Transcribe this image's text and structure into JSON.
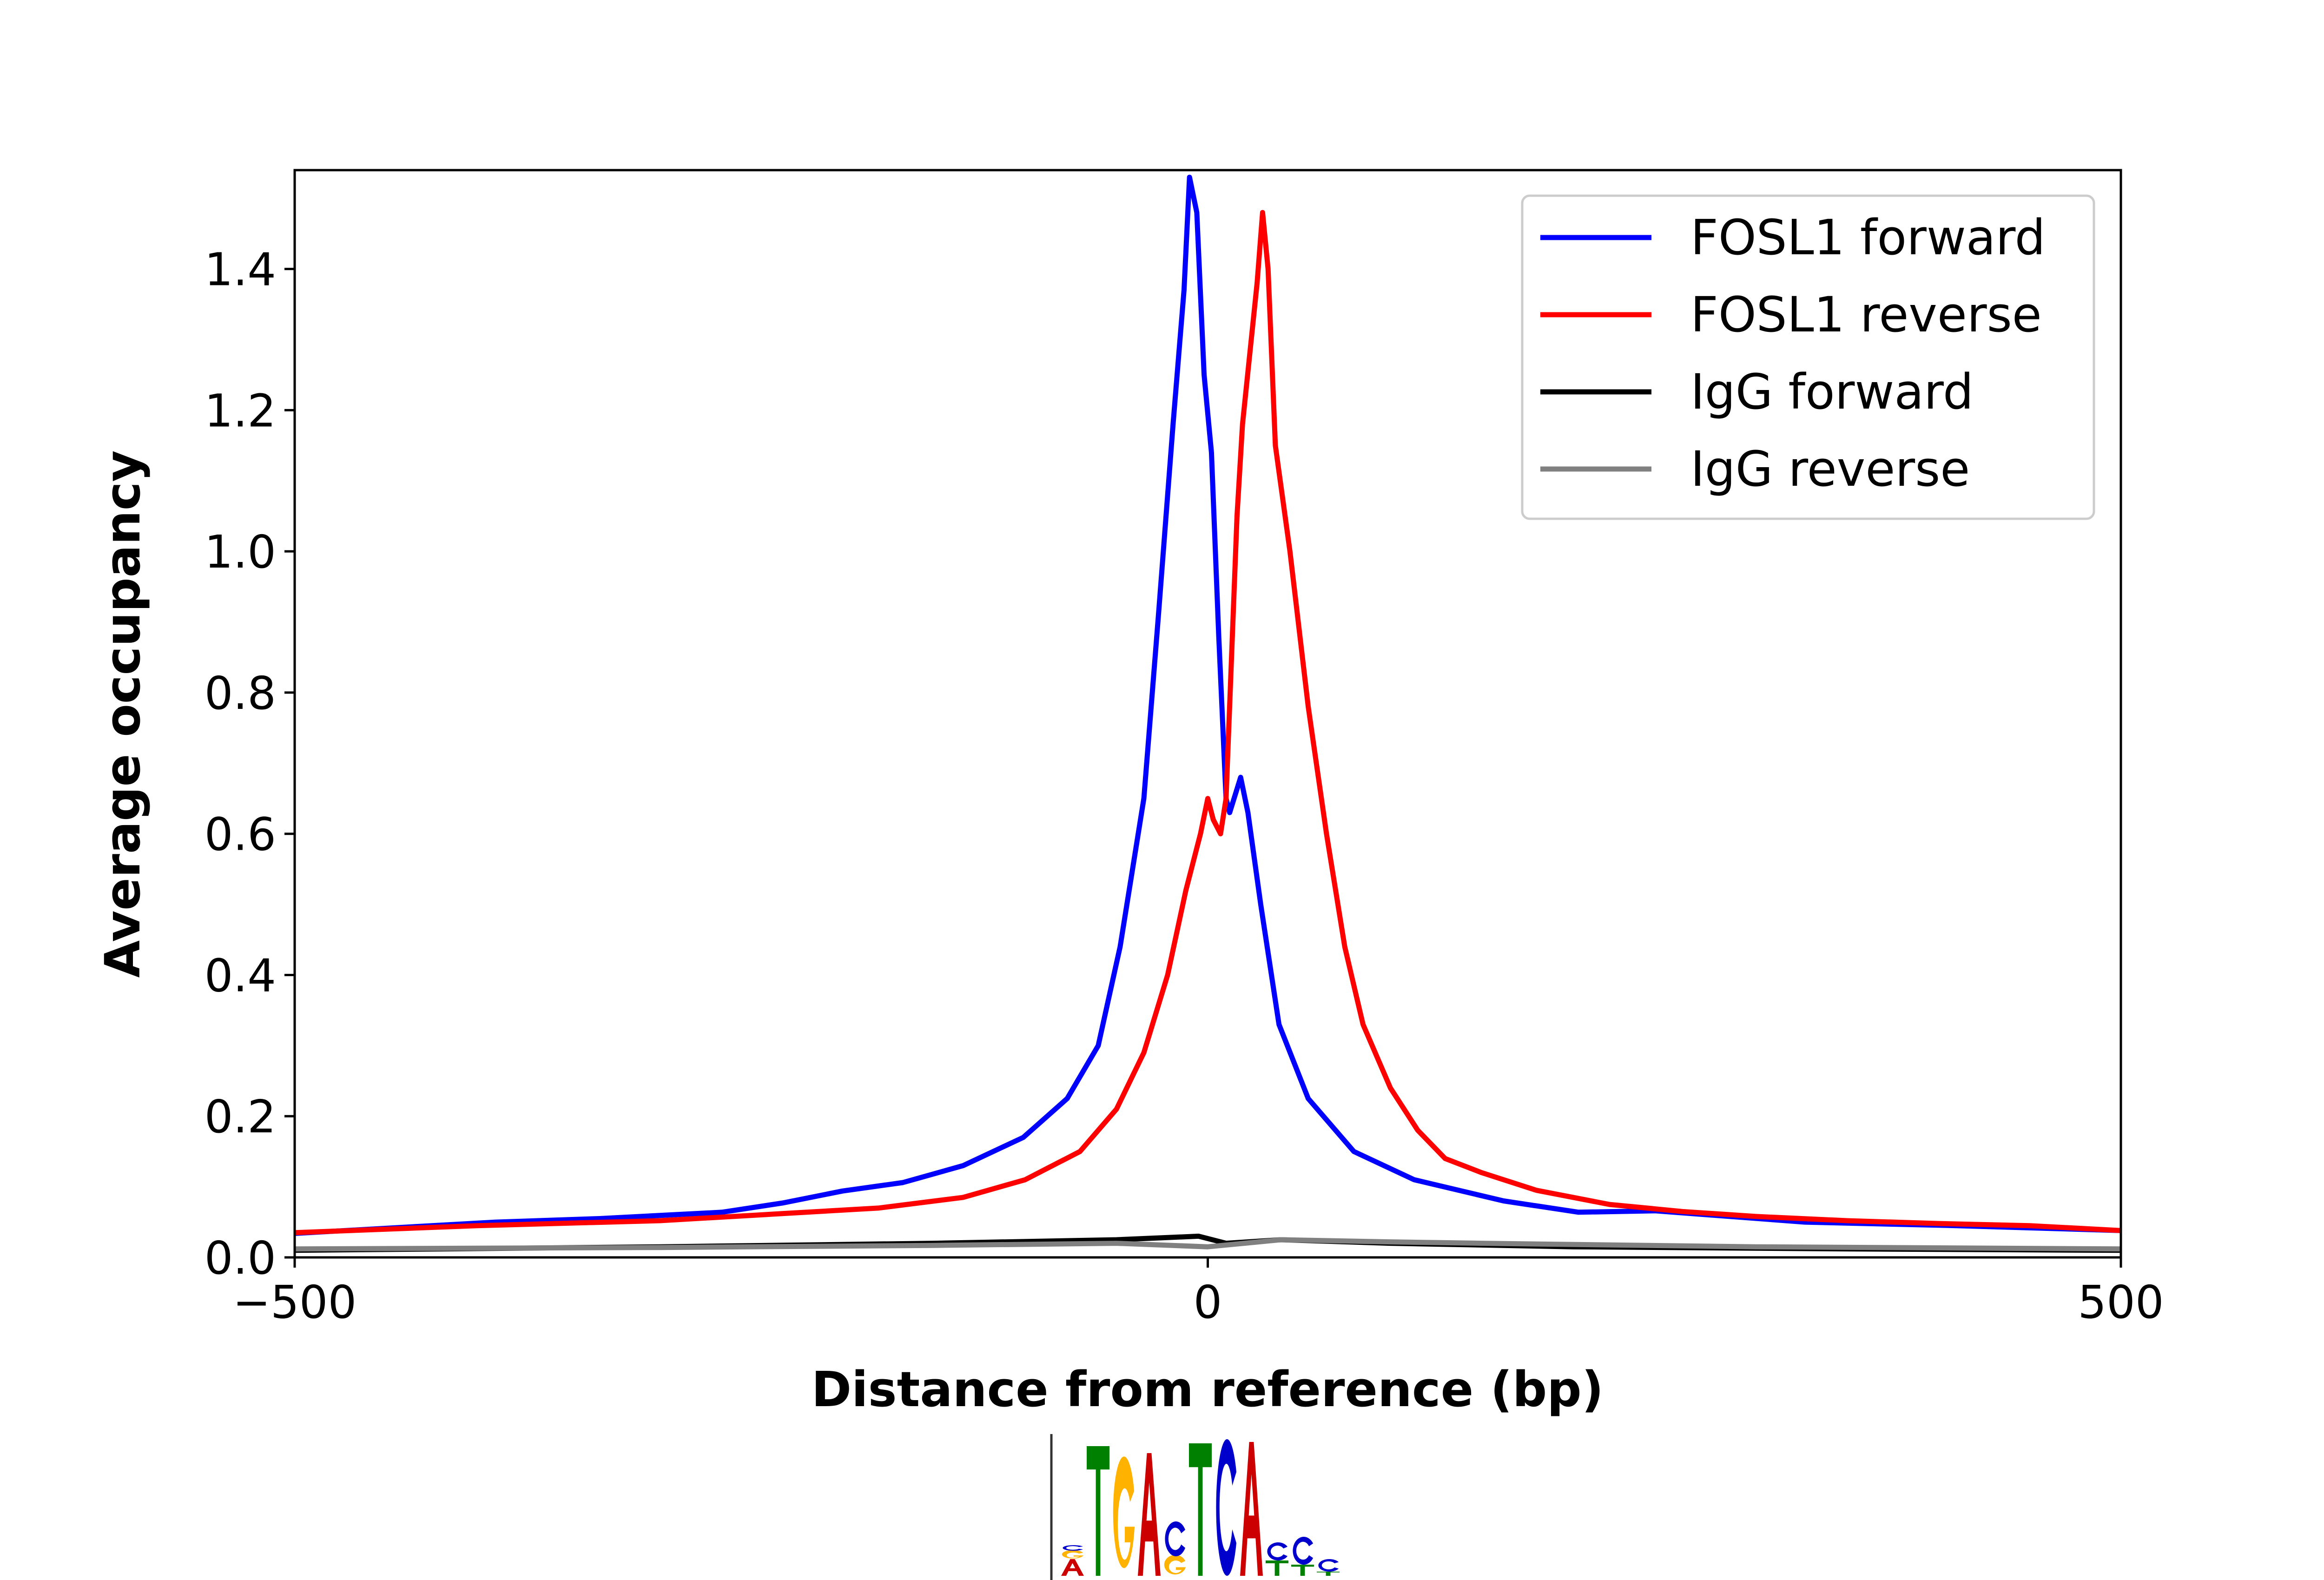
{
  "chart_data": {
    "type": "line",
    "title": "",
    "xlabel": "Distance from reference (bp)",
    "ylabel": "Average occupancy",
    "xlim": [
      -500,
      500
    ],
    "ylim": [
      0,
      1.54
    ],
    "xticks": [
      -500,
      0,
      500
    ],
    "xtick_labels": [
      "−500",
      "0",
      "500"
    ],
    "yticks": [
      0,
      0.2,
      0.4,
      0.6,
      0.8,
      1.0,
      1.2,
      1.4
    ],
    "ytick_labels": [
      "0.0",
      "0.2",
      "0.4",
      "0.6",
      "0.8",
      "1.0",
      "1.2",
      "1.4"
    ],
    "grid": false,
    "legend_position": "top-right",
    "series": [
      {
        "name": "FOSL1 forward",
        "color": "#0000ff",
        "x": [
          -500,
          -390,
          -333,
          -266,
          -233,
          -200,
          -167,
          -134,
          -101,
          -77,
          -60,
          -48,
          -35,
          -27,
          -19,
          -13,
          -10,
          -6,
          -2,
          2,
          6,
          10,
          12,
          18,
          22,
          29,
          39,
          55,
          80,
          113,
          162,
          203,
          245,
          327,
          410,
          500
        ],
        "y": [
          0.034,
          0.05,
          0.055,
          0.064,
          0.077,
          0.094,
          0.106,
          0.13,
          0.17,
          0.225,
          0.3,
          0.44,
          0.65,
          0.91,
          1.18,
          1.37,
          1.53,
          1.48,
          1.25,
          1.14,
          0.88,
          0.65,
          0.63,
          0.68,
          0.63,
          0.5,
          0.33,
          0.225,
          0.15,
          0.11,
          0.08,
          0.064,
          0.066,
          0.05,
          0.045,
          0.038
        ]
      },
      {
        "name": "FOSL1 reverse",
        "color": "#ff0000",
        "x": [
          -500,
          -400,
          -300,
          -233,
          -180,
          -134,
          -100,
          -70,
          -50,
          -35,
          -22,
          -12,
          -4,
          0,
          3,
          7,
          10,
          13,
          16,
          19,
          23,
          27,
          30,
          33,
          37,
          45,
          55,
          65,
          75,
          85,
          100,
          115,
          130,
          150,
          180,
          220,
          260,
          300,
          350,
          400,
          450,
          500
        ],
        "y": [
          0.035,
          0.045,
          0.052,
          0.062,
          0.07,
          0.085,
          0.11,
          0.15,
          0.21,
          0.29,
          0.4,
          0.52,
          0.6,
          0.65,
          0.62,
          0.6,
          0.65,
          0.85,
          1.05,
          1.18,
          1.28,
          1.38,
          1.48,
          1.4,
          1.15,
          1.0,
          0.78,
          0.6,
          0.44,
          0.33,
          0.24,
          0.18,
          0.14,
          0.12,
          0.095,
          0.075,
          0.065,
          0.058,
          0.052,
          0.048,
          0.045,
          0.038
        ]
      },
      {
        "name": "IgG forward",
        "color": "#000000",
        "x": [
          -500,
          -300,
          -150,
          -50,
          -5,
          10,
          40,
          100,
          200,
          350,
          500
        ],
        "y": [
          0.01,
          0.015,
          0.02,
          0.025,
          0.03,
          0.02,
          0.025,
          0.02,
          0.015,
          0.012,
          0.01
        ]
      },
      {
        "name": "IgG reverse",
        "color": "#808080",
        "x": [
          -500,
          -300,
          -150,
          -50,
          0,
          20,
          40,
          100,
          150,
          300,
          500
        ],
        "y": [
          0.012,
          0.014,
          0.017,
          0.02,
          0.015,
          0.02,
          0.025,
          0.022,
          0.02,
          0.015,
          0.012
        ]
      }
    ]
  },
  "motif_logo": {
    "letters": [
      [
        {
          "c": "A",
          "h": 0.12,
          "col": "#cc0000"
        },
        {
          "c": "G",
          "h": 0.06,
          "col": "#ffb300"
        },
        {
          "c": "C",
          "h": 0.04,
          "col": "#0000cc"
        }
      ],
      [
        {
          "c": "T",
          "h": 0.93,
          "col": "#008000"
        }
      ],
      [
        {
          "c": "G",
          "h": 0.8,
          "col": "#ffb300"
        }
      ],
      [
        {
          "c": "A",
          "h": 0.88,
          "col": "#cc0000"
        }
      ],
      [
        {
          "c": "G",
          "h": 0.14,
          "col": "#ffb300"
        },
        {
          "c": "C",
          "h": 0.25,
          "col": "#0000cc"
        }
      ],
      [
        {
          "c": "T",
          "h": 0.95,
          "col": "#008000"
        }
      ],
      [
        {
          "c": "C",
          "h": 0.98,
          "col": "#0000cc"
        }
      ],
      [
        {
          "c": "A",
          "h": 0.96,
          "col": "#cc0000"
        }
      ],
      [
        {
          "c": "T",
          "h": 0.11,
          "col": "#008000"
        },
        {
          "c": "C",
          "h": 0.13,
          "col": "#0000cc"
        }
      ],
      [
        {
          "c": "T",
          "h": 0.08,
          "col": "#008000"
        },
        {
          "c": "C",
          "h": 0.2,
          "col": "#0000cc"
        }
      ],
      [
        {
          "c": "T",
          "h": 0.03,
          "col": "#008000"
        },
        {
          "c": "C",
          "h": 0.09,
          "col": "#0000cc"
        }
      ]
    ]
  }
}
